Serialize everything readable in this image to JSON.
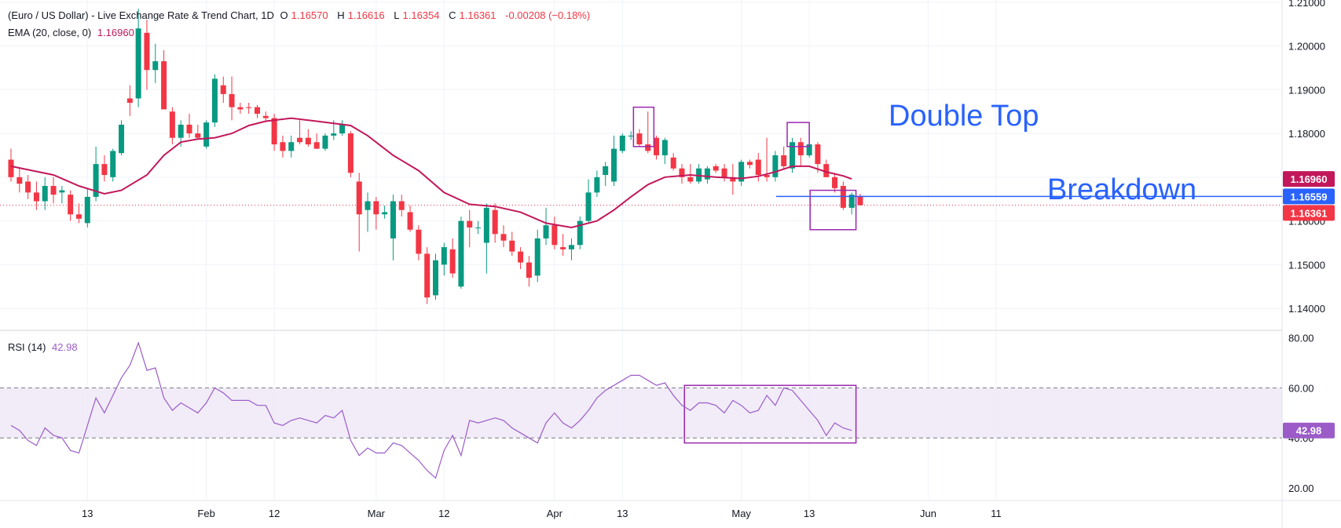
{
  "header": {
    "title": "(Euro / US Dollar) - Live Exchange Rate & Trend Chart, 1D",
    "open_label": "O",
    "open": "1.16570",
    "high_label": "H",
    "high": "1.16616",
    "low_label": "L",
    "low": "1.16354",
    "close_label": "C",
    "close": "1.16361",
    "change": "-0.00208 (−0.18%)"
  },
  "ema_legend": {
    "label": "EMA (20, close, 0)",
    "value": "1.16960"
  },
  "rsi_legend": {
    "label": "RSI (14)",
    "value": "42.98"
  },
  "annotations": {
    "double_top": "Double Top",
    "breakdown": "Breakdown"
  },
  "price_badges": [
    {
      "value": "1.16960",
      "color": "#c2185b"
    },
    {
      "value": "1.16559",
      "color": "#2962ff"
    },
    {
      "value": "1.16361",
      "color": "#f23645"
    }
  ],
  "rsi_badge": {
    "value": "42.98",
    "color": "#9c5cc8"
  },
  "colors": {
    "up": "#089981",
    "down": "#f23645",
    "ema": "#c2185b",
    "rsi": "#9c5cc8",
    "breakdown_line": "#2962ff",
    "box": "#9c27b0",
    "text_blue": "#2962ff"
  },
  "chart_data": {
    "type": "candlestick",
    "price_axis": {
      "ticks": [
        "1.21000",
        "1.20000",
        "1.19000",
        "1.18000",
        "1.17000",
        "1.16000",
        "1.15000",
        "1.14000"
      ],
      "range": [
        1.135,
        1.2105
      ]
    },
    "rsi_axis": {
      "ticks": [
        "80.00",
        "60.00",
        "40.00",
        "20.00"
      ],
      "range": [
        15,
        83
      ],
      "band": [
        40,
        60
      ]
    },
    "x_labels": [
      {
        "label": "13",
        "i": 9
      },
      {
        "label": "Feb",
        "i": 23
      },
      {
        "label": "12",
        "i": 31
      },
      {
        "label": "Mar",
        "i": 43
      },
      {
        "label": "12",
        "i": 51
      },
      {
        "label": "Apr",
        "i": 64
      },
      {
        "label": "13",
        "i": 72
      },
      {
        "label": "May",
        "i": 86
      },
      {
        "label": "13",
        "i": 94
      },
      {
        "label": "Jun",
        "i": 108
      },
      {
        "label": "11",
        "i": 116
      }
    ],
    "breakdown_level": 1.1656,
    "candles": [
      {
        "o": 1.174,
        "h": 1.1765,
        "l": 1.169,
        "c": 1.17
      },
      {
        "o": 1.17,
        "h": 1.172,
        "l": 1.1665,
        "c": 1.1685
      },
      {
        "o": 1.169,
        "h": 1.1705,
        "l": 1.165,
        "c": 1.1665
      },
      {
        "o": 1.1665,
        "h": 1.169,
        "l": 1.1625,
        "c": 1.1645
      },
      {
        "o": 1.1645,
        "h": 1.17,
        "l": 1.1625,
        "c": 1.168
      },
      {
        "o": 1.168,
        "h": 1.17,
        "l": 1.164,
        "c": 1.166
      },
      {
        "o": 1.1665,
        "h": 1.168,
        "l": 1.164,
        "c": 1.167
      },
      {
        "o": 1.166,
        "h": 1.167,
        "l": 1.16,
        "c": 1.1615
      },
      {
        "o": 1.1615,
        "h": 1.164,
        "l": 1.1595,
        "c": 1.1605
      },
      {
        "o": 1.1595,
        "h": 1.1675,
        "l": 1.1585,
        "c": 1.1655
      },
      {
        "o": 1.1655,
        "h": 1.177,
        "l": 1.1645,
        "c": 1.173
      },
      {
        "o": 1.173,
        "h": 1.175,
        "l": 1.169,
        "c": 1.1705
      },
      {
        "o": 1.17,
        "h": 1.1765,
        "l": 1.169,
        "c": 1.176
      },
      {
        "o": 1.1755,
        "h": 1.183,
        "l": 1.175,
        "c": 1.182
      },
      {
        "o": 1.188,
        "h": 1.191,
        "l": 1.184,
        "c": 1.187
      },
      {
        "o": 1.188,
        "h": 1.2085,
        "l": 1.186,
        "c": 1.204
      },
      {
        "o": 1.203,
        "h": 1.206,
        "l": 1.19,
        "c": 1.1945
      },
      {
        "o": 1.1945,
        "h": 1.2005,
        "l": 1.1915,
        "c": 1.1965
      },
      {
        "o": 1.1965,
        "h": 1.199,
        "l": 1.186,
        "c": 1.1855
      },
      {
        "o": 1.185,
        "h": 1.186,
        "l": 1.1775,
        "c": 1.179
      },
      {
        "o": 1.179,
        "h": 1.183,
        "l": 1.177,
        "c": 1.182
      },
      {
        "o": 1.182,
        "h": 1.1845,
        "l": 1.179,
        "c": 1.18
      },
      {
        "o": 1.18,
        "h": 1.182,
        "l": 1.1785,
        "c": 1.179
      },
      {
        "o": 1.177,
        "h": 1.183,
        "l": 1.1765,
        "c": 1.1825
      },
      {
        "o": 1.1825,
        "h": 1.1935,
        "l": 1.1815,
        "c": 1.1925
      },
      {
        "o": 1.191,
        "h": 1.193,
        "l": 1.187,
        "c": 1.189
      },
      {
        "o": 1.189,
        "h": 1.193,
        "l": 1.183,
        "c": 1.186
      },
      {
        "o": 1.186,
        "h": 1.187,
        "l": 1.1845,
        "c": 1.1855
      },
      {
        "o": 1.186,
        "h": 1.187,
        "l": 1.1845,
        "c": 1.1858
      },
      {
        "o": 1.186,
        "h": 1.1865,
        "l": 1.1835,
        "c": 1.1845
      },
      {
        "o": 1.184,
        "h": 1.185,
        "l": 1.183,
        "c": 1.1835
      },
      {
        "o": 1.1835,
        "h": 1.1845,
        "l": 1.176,
        "c": 1.1775
      },
      {
        "o": 1.178,
        "h": 1.1795,
        "l": 1.1745,
        "c": 1.176
      },
      {
        "o": 1.176,
        "h": 1.1795,
        "l": 1.1745,
        "c": 1.178
      },
      {
        "o": 1.179,
        "h": 1.183,
        "l": 1.1775,
        "c": 1.178
      },
      {
        "o": 1.179,
        "h": 1.181,
        "l": 1.177,
        "c": 1.1775
      },
      {
        "o": 1.178,
        "h": 1.18,
        "l": 1.1765,
        "c": 1.1765
      },
      {
        "o": 1.1765,
        "h": 1.18,
        "l": 1.176,
        "c": 1.1795
      },
      {
        "o": 1.1795,
        "h": 1.183,
        "l": 1.1785,
        "c": 1.18
      },
      {
        "o": 1.18,
        "h": 1.183,
        "l": 1.1795,
        "c": 1.182
      },
      {
        "o": 1.18,
        "h": 1.1805,
        "l": 1.17,
        "c": 1.171
      },
      {
        "o": 1.169,
        "h": 1.171,
        "l": 1.153,
        "c": 1.1615
      },
      {
        "o": 1.1625,
        "h": 1.1665,
        "l": 1.1575,
        "c": 1.1645
      },
      {
        "o": 1.1645,
        "h": 1.1655,
        "l": 1.158,
        "c": 1.1615
      },
      {
        "o": 1.1615,
        "h": 1.1635,
        "l": 1.1605,
        "c": 1.162
      },
      {
        "o": 1.156,
        "h": 1.166,
        "l": 1.151,
        "c": 1.1645
      },
      {
        "o": 1.1645,
        "h": 1.166,
        "l": 1.161,
        "c": 1.1625
      },
      {
        "o": 1.162,
        "h": 1.1635,
        "l": 1.1575,
        "c": 1.158
      },
      {
        "o": 1.158,
        "h": 1.159,
        "l": 1.151,
        "c": 1.1525
      },
      {
        "o": 1.1525,
        "h": 1.154,
        "l": 1.141,
        "c": 1.1425
      },
      {
        "o": 1.143,
        "h": 1.1525,
        "l": 1.142,
        "c": 1.151
      },
      {
        "o": 1.15,
        "h": 1.155,
        "l": 1.1475,
        "c": 1.154
      },
      {
        "o": 1.1535,
        "h": 1.156,
        "l": 1.147,
        "c": 1.148
      },
      {
        "o": 1.145,
        "h": 1.161,
        "l": 1.1445,
        "c": 1.16
      },
      {
        "o": 1.16,
        "h": 1.1625,
        "l": 1.154,
        "c": 1.1585
      },
      {
        "o": 1.1585,
        "h": 1.16,
        "l": 1.157,
        "c": 1.1585
      },
      {
        "o": 1.155,
        "h": 1.164,
        "l": 1.148,
        "c": 1.163
      },
      {
        "o": 1.1625,
        "h": 1.164,
        "l": 1.155,
        "c": 1.157
      },
      {
        "o": 1.157,
        "h": 1.159,
        "l": 1.154,
        "c": 1.1555
      },
      {
        "o": 1.1555,
        "h": 1.1575,
        "l": 1.152,
        "c": 1.153
      },
      {
        "o": 1.153,
        "h": 1.154,
        "l": 1.149,
        "c": 1.1505
      },
      {
        "o": 1.1505,
        "h": 1.152,
        "l": 1.145,
        "c": 1.147
      },
      {
        "o": 1.1475,
        "h": 1.158,
        "l": 1.146,
        "c": 1.156
      },
      {
        "o": 1.156,
        "h": 1.163,
        "l": 1.1545,
        "c": 1.159
      },
      {
        "o": 1.159,
        "h": 1.161,
        "l": 1.1535,
        "c": 1.1545
      },
      {
        "o": 1.154,
        "h": 1.157,
        "l": 1.152,
        "c": 1.1535
      },
      {
        "o": 1.1535,
        "h": 1.156,
        "l": 1.151,
        "c": 1.1545
      },
      {
        "o": 1.1545,
        "h": 1.161,
        "l": 1.1535,
        "c": 1.16
      },
      {
        "o": 1.16,
        "h": 1.1695,
        "l": 1.1595,
        "c": 1.1665
      },
      {
        "o": 1.1665,
        "h": 1.1715,
        "l": 1.1655,
        "c": 1.17
      },
      {
        "o": 1.1705,
        "h": 1.1735,
        "l": 1.168,
        "c": 1.1725
      },
      {
        "o": 1.169,
        "h": 1.1795,
        "l": 1.168,
        "c": 1.1765
      },
      {
        "o": 1.176,
        "h": 1.18,
        "l": 1.1755,
        "c": 1.1795
      },
      {
        "o": 1.1793,
        "h": 1.1805,
        "l": 1.1785,
        "c": 1.1795
      },
      {
        "o": 1.18,
        "h": 1.181,
        "l": 1.177,
        "c": 1.1775
      },
      {
        "o": 1.1775,
        "h": 1.185,
        "l": 1.1755,
        "c": 1.176
      },
      {
        "o": 1.179,
        "h": 1.1795,
        "l": 1.174,
        "c": 1.175
      },
      {
        "o": 1.175,
        "h": 1.179,
        "l": 1.173,
        "c": 1.1785
      },
      {
        "o": 1.1745,
        "h": 1.1755,
        "l": 1.1715,
        "c": 1.172
      },
      {
        "o": 1.172,
        "h": 1.173,
        "l": 1.1685,
        "c": 1.17
      },
      {
        "o": 1.17,
        "h": 1.173,
        "l": 1.1685,
        "c": 1.169
      },
      {
        "o": 1.169,
        "h": 1.173,
        "l": 1.1685,
        "c": 1.172
      },
      {
        "o": 1.1695,
        "h": 1.1725,
        "l": 1.1685,
        "c": 1.172
      },
      {
        "o": 1.1725,
        "h": 1.173,
        "l": 1.171,
        "c": 1.1715
      },
      {
        "o": 1.172,
        "h": 1.173,
        "l": 1.169,
        "c": 1.17
      },
      {
        "o": 1.17,
        "h": 1.173,
        "l": 1.166,
        "c": 1.169
      },
      {
        "o": 1.169,
        "h": 1.174,
        "l": 1.168,
        "c": 1.1735
      },
      {
        "o": 1.1735,
        "h": 1.174,
        "l": 1.172,
        "c": 1.1728
      },
      {
        "o": 1.174,
        "h": 1.1755,
        "l": 1.169,
        "c": 1.1705
      },
      {
        "o": 1.1705,
        "h": 1.179,
        "l": 1.169,
        "c": 1.17
      },
      {
        "o": 1.17,
        "h": 1.176,
        "l": 1.169,
        "c": 1.175
      },
      {
        "o": 1.175,
        "h": 1.177,
        "l": 1.172,
        "c": 1.1725
      },
      {
        "o": 1.172,
        "h": 1.179,
        "l": 1.171,
        "c": 1.178
      },
      {
        "o": 1.178,
        "h": 1.179,
        "l": 1.1725,
        "c": 1.175
      },
      {
        "o": 1.175,
        "h": 1.1785,
        "l": 1.1745,
        "c": 1.1775
      },
      {
        "o": 1.1775,
        "h": 1.178,
        "l": 1.171,
        "c": 1.173
      },
      {
        "o": 1.173,
        "h": 1.174,
        "l": 1.17,
        "c": 1.17
      },
      {
        "o": 1.17,
        "h": 1.171,
        "l": 1.1665,
        "c": 1.1675
      },
      {
        "o": 1.168,
        "h": 1.169,
        "l": 1.1625,
        "c": 1.163
      },
      {
        "o": 1.163,
        "h": 1.1665,
        "l": 1.1615,
        "c": 1.166
      },
      {
        "o": 1.1657,
        "h": 1.1662,
        "l": 1.1635,
        "c": 1.1636
      }
    ],
    "ema": [
      {
        "i": 0,
        "v": 1.1725
      },
      {
        "i": 5,
        "v": 1.1705
      },
      {
        "i": 8,
        "v": 1.168
      },
      {
        "i": 11,
        "v": 1.1662
      },
      {
        "i": 13,
        "v": 1.167
      },
      {
        "i": 16,
        "v": 1.1705
      },
      {
        "i": 18,
        "v": 1.175
      },
      {
        "i": 20,
        "v": 1.178
      },
      {
        "i": 22,
        "v": 1.1787
      },
      {
        "i": 24,
        "v": 1.179
      },
      {
        "i": 26,
        "v": 1.18
      },
      {
        "i": 28,
        "v": 1.1818
      },
      {
        "i": 30,
        "v": 1.1828
      },
      {
        "i": 33,
        "v": 1.1835
      },
      {
        "i": 36,
        "v": 1.1828
      },
      {
        "i": 40,
        "v": 1.1818
      },
      {
        "i": 42,
        "v": 1.1795
      },
      {
        "i": 45,
        "v": 1.175
      },
      {
        "i": 48,
        "v": 1.1715
      },
      {
        "i": 51,
        "v": 1.1665
      },
      {
        "i": 54,
        "v": 1.1638
      },
      {
        "i": 57,
        "v": 1.1633
      },
      {
        "i": 60,
        "v": 1.162
      },
      {
        "i": 63,
        "v": 1.1595
      },
      {
        "i": 66,
        "v": 1.1585
      },
      {
        "i": 69,
        "v": 1.16
      },
      {
        "i": 71,
        "v": 1.1625
      },
      {
        "i": 73,
        "v": 1.1655
      },
      {
        "i": 75,
        "v": 1.1683
      },
      {
        "i": 77,
        "v": 1.17
      },
      {
        "i": 80,
        "v": 1.1705
      },
      {
        "i": 83,
        "v": 1.17
      },
      {
        "i": 86,
        "v": 1.1697
      },
      {
        "i": 88,
        "v": 1.1702
      },
      {
        "i": 90,
        "v": 1.1712
      },
      {
        "i": 92,
        "v": 1.1725
      },
      {
        "i": 94,
        "v": 1.1725
      },
      {
        "i": 96,
        "v": 1.1712
      },
      {
        "i": 98,
        "v": 1.1703
      },
      {
        "i": 99,
        "v": 1.1696
      }
    ],
    "rsi": [
      {
        "i": 0,
        "v": 45
      },
      {
        "i": 1,
        "v": 43
      },
      {
        "i": 2,
        "v": 39
      },
      {
        "i": 3,
        "v": 37
      },
      {
        "i": 4,
        "v": 44
      },
      {
        "i": 5,
        "v": 41
      },
      {
        "i": 6,
        "v": 40
      },
      {
        "i": 7,
        "v": 35
      },
      {
        "i": 8,
        "v": 34
      },
      {
        "i": 9,
        "v": 45
      },
      {
        "i": 10,
        "v": 56
      },
      {
        "i": 11,
        "v": 50
      },
      {
        "i": 12,
        "v": 57
      },
      {
        "i": 13,
        "v": 64
      },
      {
        "i": 14,
        "v": 69
      },
      {
        "i": 15,
        "v": 78
      },
      {
        "i": 16,
        "v": 67
      },
      {
        "i": 17,
        "v": 68
      },
      {
        "i": 18,
        "v": 56
      },
      {
        "i": 19,
        "v": 51
      },
      {
        "i": 20,
        "v": 54
      },
      {
        "i": 21,
        "v": 52
      },
      {
        "i": 22,
        "v": 50
      },
      {
        "i": 23,
        "v": 54
      },
      {
        "i": 24,
        "v": 60
      },
      {
        "i": 25,
        "v": 58
      },
      {
        "i": 26,
        "v": 55
      },
      {
        "i": 27,
        "v": 55
      },
      {
        "i": 28,
        "v": 55
      },
      {
        "i": 29,
        "v": 53
      },
      {
        "i": 30,
        "v": 53
      },
      {
        "i": 31,
        "v": 46
      },
      {
        "i": 32,
        "v": 45
      },
      {
        "i": 33,
        "v": 47
      },
      {
        "i": 34,
        "v": 48
      },
      {
        "i": 35,
        "v": 47
      },
      {
        "i": 36,
        "v": 46
      },
      {
        "i": 37,
        "v": 49
      },
      {
        "i": 38,
        "v": 48
      },
      {
        "i": 39,
        "v": 51
      },
      {
        "i": 40,
        "v": 39
      },
      {
        "i": 41,
        "v": 33
      },
      {
        "i": 42,
        "v": 36
      },
      {
        "i": 43,
        "v": 34
      },
      {
        "i": 44,
        "v": 34
      },
      {
        "i": 45,
        "v": 38
      },
      {
        "i": 46,
        "v": 37
      },
      {
        "i": 47,
        "v": 34
      },
      {
        "i": 48,
        "v": 31
      },
      {
        "i": 49,
        "v": 27
      },
      {
        "i": 50,
        "v": 24
      },
      {
        "i": 51,
        "v": 35
      },
      {
        "i": 52,
        "v": 41
      },
      {
        "i": 53,
        "v": 33
      },
      {
        "i": 54,
        "v": 47
      },
      {
        "i": 55,
        "v": 46
      },
      {
        "i": 56,
        "v": 47
      },
      {
        "i": 57,
        "v": 48
      },
      {
        "i": 58,
        "v": 47
      },
      {
        "i": 59,
        "v": 44
      },
      {
        "i": 60,
        "v": 42
      },
      {
        "i": 61,
        "v": 40
      },
      {
        "i": 62,
        "v": 38
      },
      {
        "i": 63,
        "v": 46
      },
      {
        "i": 64,
        "v": 50
      },
      {
        "i": 65,
        "v": 46
      },
      {
        "i": 66,
        "v": 44
      },
      {
        "i": 67,
        "v": 47
      },
      {
        "i": 68,
        "v": 51
      },
      {
        "i": 69,
        "v": 56
      },
      {
        "i": 70,
        "v": 59
      },
      {
        "i": 71,
        "v": 61
      },
      {
        "i": 72,
        "v": 63
      },
      {
        "i": 73,
        "v": 65
      },
      {
        "i": 74,
        "v": 65
      },
      {
        "i": 75,
        "v": 63
      },
      {
        "i": 76,
        "v": 61
      },
      {
        "i": 77,
        "v": 62
      },
      {
        "i": 78,
        "v": 57
      },
      {
        "i": 79,
        "v": 53
      },
      {
        "i": 80,
        "v": 51
      },
      {
        "i": 81,
        "v": 54
      },
      {
        "i": 82,
        "v": 54
      },
      {
        "i": 83,
        "v": 53
      },
      {
        "i": 84,
        "v": 50
      },
      {
        "i": 85,
        "v": 55
      },
      {
        "i": 86,
        "v": 53
      },
      {
        "i": 87,
        "v": 50
      },
      {
        "i": 88,
        "v": 51
      },
      {
        "i": 89,
        "v": 57
      },
      {
        "i": 90,
        "v": 53
      },
      {
        "i": 91,
        "v": 60
      },
      {
        "i": 92,
        "v": 59
      },
      {
        "i": 93,
        "v": 55
      },
      {
        "i": 94,
        "v": 51
      },
      {
        "i": 95,
        "v": 47
      },
      {
        "i": 96,
        "v": 41
      },
      {
        "i": 97,
        "v": 46
      },
      {
        "i": 98,
        "v": 44
      },
      {
        "i": 99,
        "v": 42.98
      }
    ],
    "boxes": [
      {
        "pane": "price",
        "i0": 73.3,
        "i1": 75.7,
        "v_top": 1.186,
        "v_bottom": 1.177
      },
      {
        "pane": "price",
        "i0": 91.4,
        "i1": 94.0,
        "v_top": 1.1825,
        "v_bottom": 1.177
      },
      {
        "pane": "price",
        "i0": 94.1,
        "i1": 99.5,
        "v_top": 1.167,
        "v_bottom": 1.158
      },
      {
        "pane": "rsi",
        "i0": 79.3,
        "i1": 99.5,
        "v_top": 61,
        "v_bottom": 38
      }
    ]
  }
}
